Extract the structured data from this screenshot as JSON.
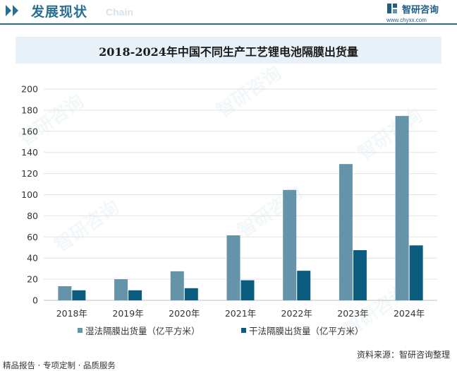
{
  "header": {
    "title": "发展现状",
    "subtitle": "Chain",
    "brand_name": "智研咨询",
    "brand_url": "www.chyxx.com"
  },
  "watermark_text": "智研咨询",
  "colors": {
    "accent": "#2a6f93",
    "series_wet": "#6593aa",
    "series_dry": "#0b5d80",
    "title_band": "#e8f1f8"
  },
  "chart_data": {
    "type": "bar",
    "title": "2018-2024年中国不同生产工艺锂电池隔膜出货量",
    "categories": [
      "2018年",
      "2019年",
      "2020年",
      "2021年",
      "2022年",
      "2023年",
      "2024年"
    ],
    "series": [
      {
        "name": "湿法隔膜出货量（亿平方米）",
        "values": [
          13.4,
          20,
          27.5,
          61.5,
          104.5,
          129,
          174.5
        ]
      },
      {
        "name": "干法隔膜出货量（亿平方米）",
        "values": [
          9.5,
          9.5,
          11.5,
          19,
          28,
          47.5,
          52
        ]
      }
    ],
    "ylim": [
      0,
      200
    ],
    "yticks": [
      0,
      20,
      40,
      60,
      80,
      100,
      120,
      140,
      160,
      180,
      200
    ],
    "grid": true,
    "legend_position": "bottom"
  },
  "footer": {
    "source": "资料来源：智研咨询整理",
    "tagline": "精品报告 · 专项定制 · 品质服务"
  }
}
